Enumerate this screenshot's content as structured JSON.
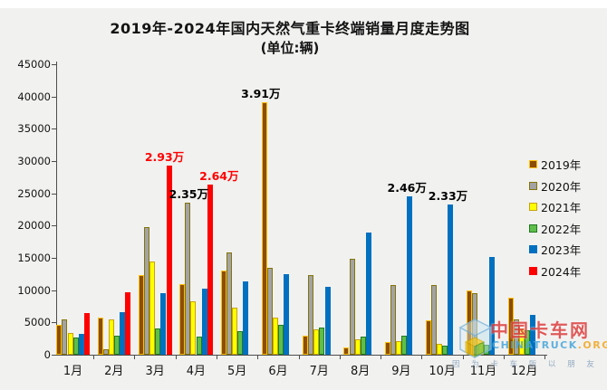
{
  "title": {
    "line1": "2019年-2024年国内天然气重卡终端销量月度走势图",
    "line2": "(单位:辆)"
  },
  "chart_data": {
    "type": "bar",
    "title": "2019年-2024年国内天然气重卡终端销量月度走势图",
    "subtitle": "(单位:辆)",
    "unit": "辆",
    "categories": [
      "1月",
      "2月",
      "3月",
      "4月",
      "5月",
      "6月",
      "7月",
      "8月",
      "9月",
      "10月",
      "11月",
      "12月"
    ],
    "series": [
      {
        "name": "2019年",
        "fill": "#8c4d05",
        "border": "#ffc000",
        "values": [
          4600,
          5700,
          12300,
          11000,
          13000,
          39100,
          2900,
          1100,
          2000,
          5300,
          9900,
          8800
        ]
      },
      {
        "name": "2020年",
        "fill": "#a3a3a3",
        "border": "#847409",
        "values": [
          5400,
          800,
          19700,
          23500,
          15800,
          13500,
          12300,
          14800,
          10800,
          10800,
          9500,
          5500
        ]
      },
      {
        "name": "2021年",
        "fill": "#ffff00",
        "border": "#c9a20a",
        "values": [
          3400,
          5500,
          14500,
          8300,
          7300,
          5800,
          3900,
          2400,
          2100,
          1700,
          1800,
          4100
        ]
      },
      {
        "name": "2022年",
        "fill": "#5fbe4a",
        "border": "#1f7a1f",
        "values": [
          2700,
          3000,
          4000,
          2800,
          3700,
          4600,
          4200,
          2800,
          2900,
          1400,
          1600,
          3800
        ]
      },
      {
        "name": "2023年",
        "fill": "#0070c0",
        "border": "#0070c0",
        "values": [
          3200,
          6600,
          9500,
          10300,
          11400,
          12500,
          10500,
          18900,
          24600,
          23300,
          15200,
          6200
        ]
      },
      {
        "name": "2024年",
        "fill": "#fe0000",
        "border": "#fe0000",
        "values": [
          6500,
          9700,
          29300,
          26400,
          null,
          null,
          null,
          null,
          null,
          null,
          null,
          null
        ]
      }
    ],
    "ylim": [
      0,
      45000
    ],
    "ytick_step": 5000,
    "grid": false,
    "legend_position": "right",
    "annotations": [
      {
        "month": 5,
        "series": 0,
        "label": "3.91万",
        "color": "#000000",
        "dx": -4
      },
      {
        "month": 3,
        "series": 1,
        "label": "2.35万",
        "color": "#000000",
        "dx": 1
      },
      {
        "month": 2,
        "series": 5,
        "label": "2.93万",
        "color": "#ff0000",
        "dx": -5
      },
      {
        "month": 3,
        "series": 5,
        "label": "2.64万",
        "color": "#ff0000",
        "dx": 10
      },
      {
        "month": 8,
        "series": 4,
        "label": "2.46万",
        "color": "#000000",
        "dx": -3
      },
      {
        "month": 9,
        "series": 4,
        "label": "2.33万",
        "color": "#000000",
        "dx": -3
      }
    ]
  },
  "watermark": {
    "brand": "中国卡车网",
    "domain_blue": "CHINATRUCK",
    "domain_orange": ".ORG",
    "slogan": "因 为 卡 车 所 以 朋 友"
  }
}
